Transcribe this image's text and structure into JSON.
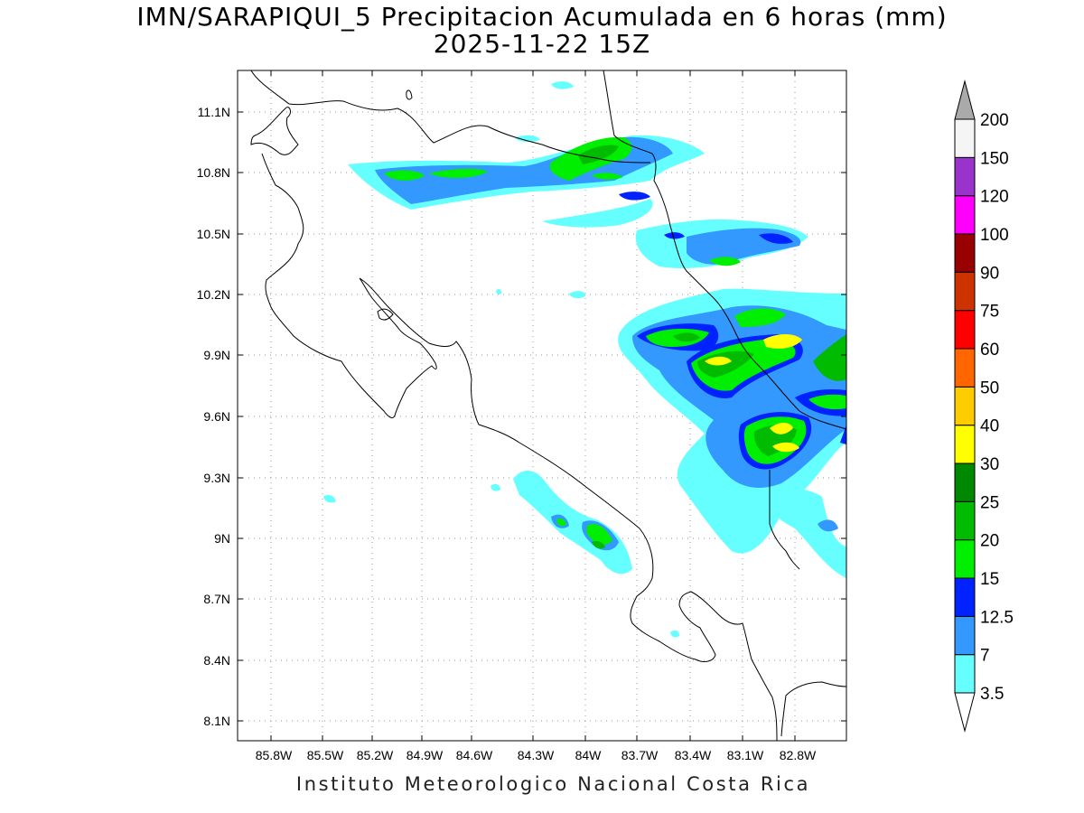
{
  "header": {
    "title": "IMN/SARAPIQUI_5 Precipitacion Acumulada en 6 horas (mm)",
    "subtitle": "2025-11-22 15Z"
  },
  "footer": {
    "credit": "Instituto Meteorologico Nacional Costa Rica"
  },
  "map": {
    "lon_range": [
      -86.0,
      -82.6
    ],
    "lat_range": [
      8.0,
      11.3
    ],
    "x_ticks": [
      "85.8W",
      "85.5W",
      "85.2W",
      "84.9W",
      "84.6W",
      "84.3W",
      "84W",
      "83.7W",
      "83.4W",
      "83.1W",
      "82.8W"
    ],
    "y_ticks": [
      "11.1N",
      "10.8N",
      "10.5N",
      "10.2N",
      "9.9N",
      "9.6N",
      "9.3N",
      "9N",
      "8.7N",
      "8.4N",
      "8.1N"
    ],
    "grid": "dotted"
  },
  "colorbar": {
    "levels": [
      "3.5",
      "7",
      "12.5",
      "15",
      "20",
      "25",
      "30",
      "40",
      "50",
      "60",
      "75",
      "90",
      "100",
      "120",
      "150",
      "200"
    ],
    "colors": [
      "#66ffff",
      "#3399ff",
      "#0022ff",
      "#00ee00",
      "#00bb00",
      "#008800",
      "#ffff00",
      "#ffcc00",
      "#ff6600",
      "#ff0000",
      "#cc3300",
      "#990000",
      "#ff00ff",
      "#9933cc",
      "#f5f5f5",
      "#aaaaaa"
    ]
  },
  "precip_cells": [
    {
      "lon": -84.7,
      "lat": 10.78,
      "level": 2
    },
    {
      "lon": -83.8,
      "lat": 10.85,
      "level": 5
    },
    {
      "lon": -83.3,
      "lat": 10.35,
      "level": 3
    },
    {
      "lon": -83.0,
      "lat": 10.0,
      "level": 7
    },
    {
      "lon": -82.9,
      "lat": 9.5,
      "level": 7
    },
    {
      "lon": -83.9,
      "lat": 8.97,
      "level": 4
    }
  ]
}
